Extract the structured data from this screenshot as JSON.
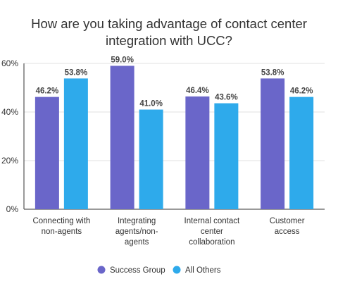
{
  "chart_data": {
    "type": "bar",
    "title_lines": [
      "How are you taking advantage of contact center",
      "integration with UCC?"
    ],
    "categories": [
      [
        "Connecting with",
        "non-agents"
      ],
      [
        "Integrating",
        "agents/non-",
        "agents"
      ],
      [
        "Internal contact",
        "center",
        "collaboration"
      ],
      [
        "Customer",
        "access"
      ]
    ],
    "series": [
      {
        "name": "Success Group",
        "color": "#6a66c9",
        "values": [
          46.2,
          59.0,
          46.4,
          53.8
        ],
        "labels": [
          "46.2%",
          "59.0%",
          "46.4%",
          "53.8%"
        ]
      },
      {
        "name": "All Others",
        "color": "#2eaaeb",
        "values": [
          53.8,
          41.0,
          43.6,
          46.2
        ],
        "labels": [
          "53.8%",
          "41.0%",
          "43.6%",
          "46.2%"
        ]
      }
    ],
    "ylim": [
      0,
      60
    ],
    "yticks": [
      0,
      20,
      40,
      60
    ],
    "ytick_labels": [
      "0%",
      "20%",
      "40%",
      "60%"
    ],
    "grid": true,
    "legend": "bottom-center",
    "gridline_color": "#e0e0e0"
  }
}
